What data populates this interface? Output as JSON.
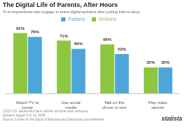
{
  "chart_data": {
    "type": "bar",
    "title": "The Digital Life of Parents, After Hours",
    "subtitle": "% of respondents who engage in select digital activities after putting kids to sleep",
    "categories": [
      "Watch TV or\nmovie",
      "Use social\nmedia",
      "Talk on the\nphone or text",
      "Play video\ngames"
    ],
    "series": [
      {
        "name": "Mothers",
        "color": "#8dc63f",
        "values": [
          81,
          71,
          66,
          35
        ],
        "value_labels": [
          "81%",
          "71%",
          "66%",
          "35%"
        ]
      },
      {
        "name": "Fathers",
        "color": "#4da6d9",
        "values": [
          76,
          60,
          53,
          35
        ],
        "value_labels": [
          "76%",
          "60%",
          "53%",
          "35%"
        ]
      }
    ],
    "ylim": [
      0,
      92
    ],
    "tick_labels": "x",
    "data_labels": true,
    "legend": "top",
    "grid": false,
    "annotations": [
      "1,510 U.S. adults who have children at home were surveyed\nbetween August 5 to 14, 2018.\nSource: Center for the Study of Elections and Democracy via eMarketer",
      "statista"
    ]
  }
}
